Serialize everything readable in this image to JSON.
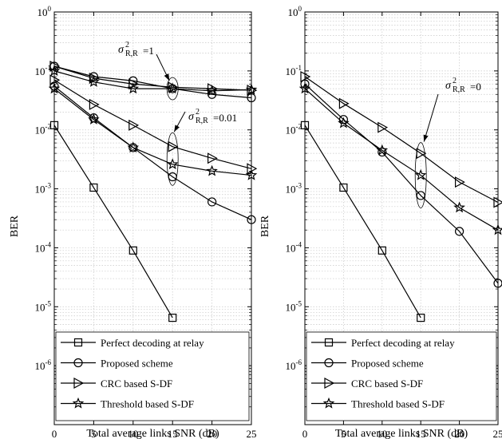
{
  "chart_data": [
    {
      "type": "line",
      "y_scale": "log",
      "xlabel": "Total average links SNR (dB)",
      "ylabel": "BER",
      "xlim": [
        0,
        25
      ],
      "ylim": [
        1e-07,
        1
      ],
      "x_ticks": [
        "0",
        "5",
        "10",
        "15",
        "20",
        "25"
      ],
      "grid": true,
      "legend_position": "bottom-left",
      "legend": [
        "Perfect decoding at relay",
        "Proposed scheme",
        "CRC based S-DF",
        "Threshold based S-DF"
      ],
      "series": [
        {
          "name": "Perfect decoding at relay",
          "marker": "square",
          "x": [
            0,
            5,
            10,
            15
          ],
          "y": [
            0.012,
            0.00105,
            9e-05,
            6.5e-06
          ]
        },
        {
          "name": "Proposed scheme",
          "marker": "circle",
          "x": [
            0,
            5,
            10,
            15,
            20,
            25
          ],
          "y": [
            0.12,
            0.08,
            0.068,
            0.05,
            0.04,
            0.035
          ]
        },
        {
          "name": "CRC based S-DF",
          "marker": "triangle-right",
          "x": [
            0,
            5,
            10,
            15,
            20,
            25
          ],
          "y": [
            0.12,
            0.075,
            0.06,
            0.053,
            0.05,
            0.047
          ]
        },
        {
          "name": "Threshold based S-DF",
          "marker": "star",
          "x": [
            0,
            5,
            10,
            15,
            20,
            25
          ],
          "y": [
            0.1,
            0.065,
            0.05,
            0.05,
            0.046,
            0.048
          ]
        },
        {
          "name": "Proposed scheme",
          "marker": "circle",
          "x": [
            0,
            5,
            10,
            15,
            20,
            25
          ],
          "y": [
            0.055,
            0.016,
            0.005,
            0.0016,
            0.0006,
            0.0003
          ]
        },
        {
          "name": "CRC based S-DF",
          "marker": "triangle-right",
          "x": [
            0,
            5,
            10,
            15,
            20,
            25
          ],
          "y": [
            0.07,
            0.027,
            0.012,
            0.0052,
            0.0033,
            0.0022
          ]
        },
        {
          "name": "Threshold based S-DF",
          "marker": "star",
          "x": [
            0,
            5,
            10,
            15,
            20,
            25
          ],
          "y": [
            0.05,
            0.015,
            0.005,
            0.0026,
            0.002,
            0.0017
          ]
        }
      ],
      "annotations": [
        {
          "sigma": "σ",
          "superscript": "2",
          "subscript": "R,R",
          "value_text": "=1",
          "x": 15,
          "y": 0.05
        },
        {
          "sigma": "σ",
          "superscript": "2",
          "subscript": "R,R",
          "value_text": "=0.01",
          "x": 15,
          "y": 0.004
        }
      ]
    },
    {
      "type": "line",
      "y_scale": "log",
      "xlabel": "Total average links SNR (dB)",
      "ylabel": "BER",
      "xlim": [
        0,
        25
      ],
      "ylim": [
        1e-07,
        1
      ],
      "x_ticks": [
        "0",
        "5",
        "10",
        "15",
        "20",
        "25"
      ],
      "grid": true,
      "legend_position": "bottom-left",
      "legend": [
        "Perfect decoding at relay",
        "Proposed scheme",
        "CRC based S-DF",
        "Threshold based S-DF"
      ],
      "series": [
        {
          "name": "Perfect decoding at relay",
          "marker": "square",
          "x": [
            0,
            5,
            10,
            15
          ],
          "y": [
            0.012,
            0.00105,
            9e-05,
            6.5e-06
          ]
        },
        {
          "name": "Proposed scheme",
          "marker": "circle",
          "x": [
            0,
            5,
            10,
            15,
            20,
            25
          ],
          "y": [
            0.06,
            0.015,
            0.0042,
            0.00077,
            0.00019,
            2.5e-05
          ]
        },
        {
          "name": "CRC based S-DF",
          "marker": "triangle-right",
          "x": [
            0,
            5,
            10,
            15,
            20,
            25
          ],
          "y": [
            0.08,
            0.028,
            0.011,
            0.004,
            0.0013,
            0.00059
          ]
        },
        {
          "name": "Threshold based S-DF",
          "marker": "star",
          "x": [
            0,
            5,
            10,
            15,
            20,
            25
          ],
          "y": [
            0.05,
            0.013,
            0.0045,
            0.0017,
            0.00048,
            0.0002
          ]
        }
      ],
      "annotations": [
        {
          "sigma": "σ",
          "superscript": "2",
          "subscript": "R,R",
          "value_text": "=0",
          "x": 15,
          "y": 0.002
        }
      ]
    }
  ]
}
